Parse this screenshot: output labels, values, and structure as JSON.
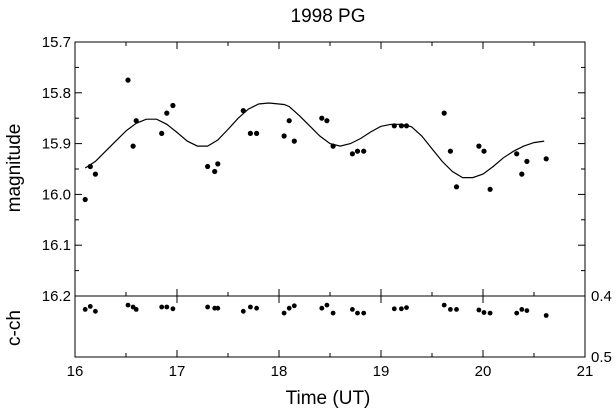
{
  "chart_data": [
    {
      "type": "scatter",
      "panel": "main",
      "title": "1998 PG",
      "xlabel": "",
      "ylabel": "magnitude",
      "xlim": [
        16,
        21
      ],
      "ylim": [
        16.2,
        15.7
      ],
      "y_inverted": true,
      "yticks": [
        "15.7",
        "15.8",
        "15.9",
        "16.0",
        "16.1",
        "16.2"
      ],
      "series": [
        {
          "kind": "points",
          "x": [
            16.1,
            16.15,
            16.2,
            16.52,
            16.57,
            16.6,
            16.85,
            16.9,
            16.96,
            17.3,
            17.37,
            17.4,
            17.65,
            17.72,
            17.78,
            18.05,
            18.1,
            18.15,
            18.42,
            18.47,
            18.53,
            18.72,
            18.77,
            18.83,
            19.13,
            19.2,
            19.25,
            19.62,
            19.68,
            19.74,
            19.96,
            20.01,
            20.07,
            20.33,
            20.38,
            20.43,
            20.62
          ],
          "y": [
            16.01,
            15.945,
            15.96,
            15.775,
            15.905,
            15.855,
            15.88,
            15.84,
            15.825,
            15.945,
            15.955,
            15.94,
            15.835,
            15.88,
            15.88,
            15.885,
            15.855,
            15.895,
            15.85,
            15.855,
            15.905,
            15.92,
            15.915,
            15.915,
            15.865,
            15.865,
            15.865,
            15.84,
            15.915,
            15.985,
            15.905,
            15.915,
            15.99,
            15.92,
            15.96,
            15.935,
            15.93
          ]
        },
        {
          "kind": "fit-curve",
          "x": [
            16.1,
            16.2,
            16.3,
            16.4,
            16.5,
            16.6,
            16.7,
            16.8,
            16.9,
            17.0,
            17.1,
            17.2,
            17.3,
            17.4,
            17.5,
            17.6,
            17.7,
            17.8,
            17.9,
            18.0,
            18.05,
            18.1,
            18.2,
            18.3,
            18.4,
            18.5,
            18.6,
            18.7,
            18.8,
            18.9,
            19.0,
            19.1,
            19.2,
            19.3,
            19.4,
            19.5,
            19.6,
            19.7,
            19.8,
            19.9,
            20.0,
            20.1,
            20.2,
            20.3,
            20.4,
            20.5,
            20.6
          ],
          "y": [
            15.948,
            15.935,
            15.915,
            15.895,
            15.875,
            15.86,
            15.852,
            15.852,
            15.862,
            15.878,
            15.895,
            15.905,
            15.905,
            15.893,
            15.872,
            15.85,
            15.832,
            15.822,
            15.82,
            15.822,
            15.823,
            15.827,
            15.845,
            15.865,
            15.885,
            15.9,
            15.905,
            15.9,
            15.89,
            15.877,
            15.866,
            15.862,
            15.862,
            15.867,
            15.885,
            15.91,
            15.935,
            15.955,
            15.967,
            15.967,
            15.96,
            15.945,
            15.928,
            15.915,
            15.905,
            15.898,
            15.895
          ]
        }
      ]
    },
    {
      "type": "scatter",
      "panel": "sub",
      "xlabel": "Time (UT)",
      "ylabel": "c-ch",
      "xlim": [
        16,
        21
      ],
      "ylim": [
        0.4,
        0.5
      ],
      "y_axis_side": "right",
      "xticks": [
        "16",
        "17",
        "18",
        "19",
        "20",
        "21"
      ],
      "yticks": [
        "0.4",
        "0.5"
      ],
      "series": [
        {
          "kind": "points",
          "x": [
            16.1,
            16.15,
            16.2,
            16.52,
            16.57,
            16.6,
            16.85,
            16.9,
            16.96,
            17.3,
            17.37,
            17.4,
            17.65,
            17.72,
            17.78,
            18.05,
            18.1,
            18.15,
            18.42,
            18.47,
            18.53,
            18.72,
            18.77,
            18.83,
            19.13,
            19.2,
            19.25,
            19.62,
            19.68,
            19.74,
            19.96,
            20.01,
            20.07,
            20.33,
            20.38,
            20.43,
            20.62
          ],
          "y": [
            0.422,
            0.417,
            0.425,
            0.415,
            0.418,
            0.422,
            0.418,
            0.418,
            0.421,
            0.418,
            0.42,
            0.42,
            0.425,
            0.418,
            0.42,
            0.428,
            0.42,
            0.416,
            0.42,
            0.415,
            0.428,
            0.422,
            0.428,
            0.428,
            0.421,
            0.421,
            0.419,
            0.415,
            0.422,
            0.422,
            0.423,
            0.427,
            0.428,
            0.428,
            0.422,
            0.424,
            0.432
          ]
        }
      ]
    }
  ]
}
